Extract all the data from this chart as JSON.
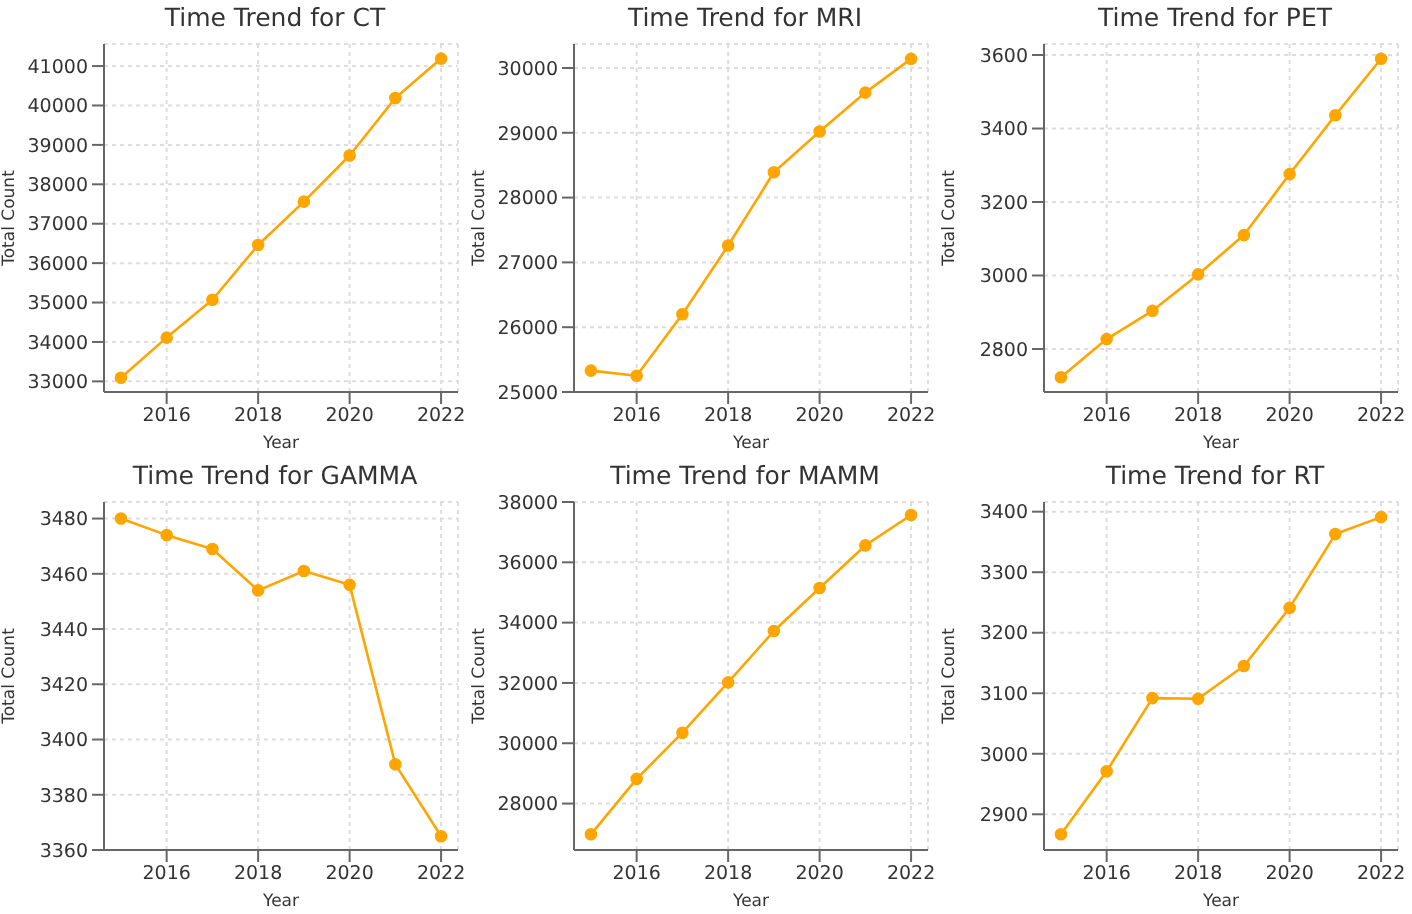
{
  "chart_data": [
    {
      "type": "line",
      "title": "Time Trend for CT",
      "xlabel": "Year",
      "ylabel": "Total Count",
      "x": [
        2015,
        2016,
        2017,
        2018,
        2019,
        2020,
        2021,
        2022
      ],
      "series": [
        {
          "color": "#ffa500",
          "values": [
            33090,
            34110,
            35070,
            36460,
            37560,
            38730,
            40190,
            41190
          ]
        }
      ],
      "xlim": [
        2014.63,
        2022.37
      ],
      "xticks": [
        2016,
        2018,
        2020,
        2022
      ],
      "ylim": [
        32730,
        41560
      ],
      "yticks": [
        33000,
        34000,
        35000,
        36000,
        37000,
        38000,
        39000,
        40000,
        41000
      ],
      "grid": true,
      "marker": "circle"
    },
    {
      "type": "line",
      "title": "Time Trend for MRI",
      "xlabel": "Year",
      "ylabel": "Total Count",
      "x": [
        2015,
        2016,
        2017,
        2018,
        2019,
        2020,
        2021,
        2022
      ],
      "series": [
        {
          "color": "#ffa500",
          "values": [
            25330,
            25250,
            26200,
            27260,
            28390,
            29020,
            29620,
            30140
          ]
        }
      ],
      "xlim": [
        2014.63,
        2022.37
      ],
      "xticks": [
        2016,
        2018,
        2020,
        2022
      ],
      "ylim": [
        25000,
        30370
      ],
      "yticks": [
        25000,
        26000,
        27000,
        28000,
        29000,
        30000
      ],
      "grid": true,
      "marker": "circle"
    },
    {
      "type": "line",
      "title": "Time Trend for PET",
      "xlabel": "Year",
      "ylabel": "Total Count",
      "x": [
        2015,
        2016,
        2017,
        2018,
        2019,
        2020,
        2021,
        2022
      ],
      "series": [
        {
          "color": "#ffa500",
          "values": [
            2723,
            2827,
            2904,
            3003,
            3110,
            3276,
            3436,
            3590
          ]
        }
      ],
      "xlim": [
        2014.63,
        2022.37
      ],
      "xticks": [
        2016,
        2018,
        2020,
        2022
      ],
      "ylim": [
        2683,
        3630
      ],
      "yticks": [
        2800,
        3000,
        3200,
        3400,
        3600
      ],
      "grid": true,
      "marker": "circle"
    },
    {
      "type": "line",
      "title": "Time Trend for GAMMA",
      "xlabel": "Year",
      "ylabel": "Total Count",
      "x": [
        2015,
        2016,
        2017,
        2018,
        2019,
        2020,
        2021,
        2022
      ],
      "series": [
        {
          "color": "#ffa500",
          "values": [
            3480,
            3474,
            3469,
            3454,
            3461,
            3456,
            3391,
            3365
          ]
        }
      ],
      "xlim": [
        2014.63,
        2022.37
      ],
      "xticks": [
        2016,
        2018,
        2020,
        2022
      ],
      "ylim": [
        3360,
        3486
      ],
      "yticks": [
        3360,
        3380,
        3400,
        3420,
        3440,
        3460,
        3480
      ],
      "grid": true,
      "marker": "circle"
    },
    {
      "type": "line",
      "title": "Time Trend for MAMM",
      "xlabel": "Year",
      "ylabel": "Total Count",
      "x": [
        2015,
        2016,
        2017,
        2018,
        2019,
        2020,
        2021,
        2022
      ],
      "series": [
        {
          "color": "#ffa500",
          "values": [
            26980,
            28820,
            30350,
            32020,
            33720,
            35150,
            36560,
            37570
          ]
        }
      ],
      "xlim": [
        2014.63,
        2022.37
      ],
      "xticks": [
        2016,
        2018,
        2020,
        2022
      ],
      "ylim": [
        26460,
        38000
      ],
      "yticks": [
        28000,
        30000,
        32000,
        34000,
        36000,
        38000
      ],
      "grid": true,
      "marker": "circle"
    },
    {
      "type": "line",
      "title": "Time Trend for RT",
      "xlabel": "Year",
      "ylabel": "Total Count",
      "x": [
        2015,
        2016,
        2017,
        2018,
        2019,
        2020,
        2021,
        2022
      ],
      "series": [
        {
          "color": "#ffa500",
          "values": [
            2867,
            2971,
            3092,
            3091,
            3145,
            3241,
            3363,
            3391
          ]
        }
      ],
      "xlim": [
        2014.63,
        2022.37
      ],
      "xticks": [
        2016,
        2018,
        2020,
        2022
      ],
      "ylim": [
        2841,
        3416
      ],
      "yticks": [
        2900,
        3000,
        3100,
        3200,
        3300,
        3400
      ],
      "grid": true,
      "marker": "circle"
    }
  ]
}
